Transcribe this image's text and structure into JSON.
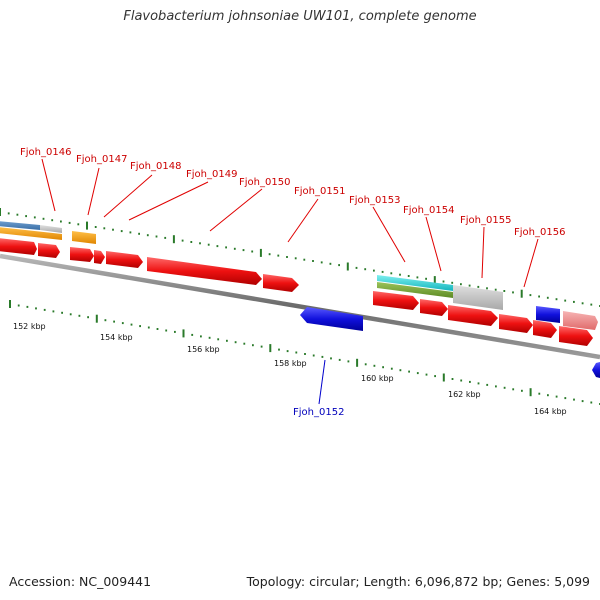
{
  "title": "Flavobacterium johnsoniae UW101, complete genome",
  "footer": {
    "accession": "Accession: NC_009441",
    "stats": "Topology: circular; Length: 6,096,872 bp; Genes: 5,099"
  },
  "colors": {
    "forward_gene": "#ee1111",
    "reverse_gene": "#1111dd",
    "tick": "#2a7a2a",
    "backbone": "#808080",
    "label_forward": "#cc0000",
    "label_reverse": "#0000bb"
  },
  "scale_labels": [
    "152 kbp",
    "154 kbp",
    "156 kbp",
    "158 kbp",
    "160 kbp",
    "162 kbp",
    "164 kbp"
  ],
  "gene_labels": {
    "forward": [
      "Fjoh_0146",
      "Fjoh_0147",
      "Fjoh_0148",
      "Fjoh_0149",
      "Fjoh_0150",
      "Fjoh_0151",
      "Fjoh_0153",
      "Fjoh_0154",
      "Fjoh_0155",
      "Fjoh_0156"
    ],
    "reverse": [
      "Fjoh_0152"
    ]
  }
}
